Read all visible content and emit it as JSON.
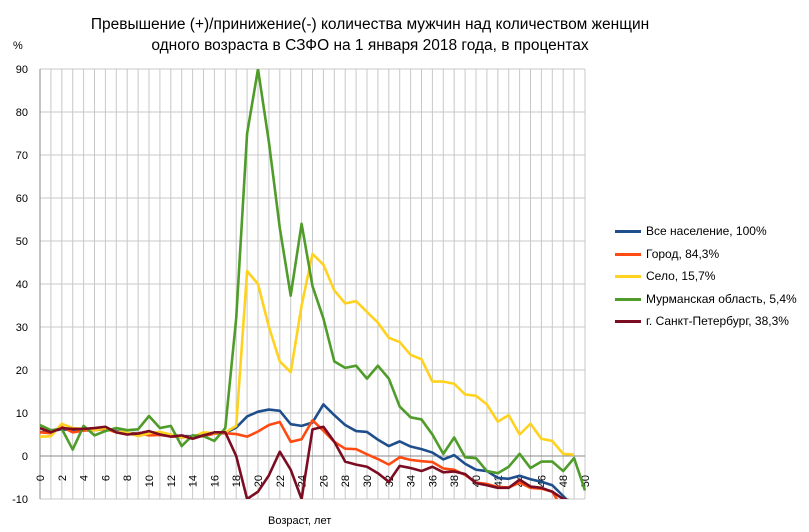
{
  "chart_data": {
    "type": "line",
    "title_line1": "Превышение (+)/принижение(-) количества мужчин над количеством женщин",
    "title_line2": "одного возраста в СЗФО на 1 января 2018 года, в процентах",
    "ylabel": "%",
    "xlabel": "Возраст, лет",
    "ylim": [
      -10,
      90
    ],
    "yticks": [
      -10,
      0,
      10,
      20,
      30,
      40,
      50,
      60,
      70,
      80,
      90
    ],
    "xlim": [
      0,
      50
    ],
    "xticks": [
      0,
      2,
      4,
      6,
      8,
      10,
      12,
      14,
      16,
      18,
      20,
      22,
      24,
      26,
      28,
      30,
      32,
      34,
      36,
      38,
      40,
      42,
      44,
      46,
      48,
      50
    ],
    "grid": true,
    "legend_position": "right",
    "series": [
      {
        "name": "Все население, 100%",
        "color": "#1f4e8c",
        "values": [
          5.5,
          5.8,
          6.2,
          6,
          6.2,
          6.3,
          6.3,
          5.8,
          5.3,
          5.3,
          5.5,
          5.2,
          4.9,
          4.6,
          4.6,
          4.9,
          5.2,
          5.4,
          6.6,
          9.2,
          10.3,
          10.8,
          10.5,
          7.4,
          7,
          7.8,
          12,
          9.5,
          7.2,
          5.8,
          5.6,
          3.8,
          2.3,
          3.4,
          2.2,
          1.6,
          0.8,
          -0.8,
          0.2,
          -1.8,
          -3.2,
          -3.5,
          -5.1,
          -5.3,
          -4.6,
          -5.4,
          -6,
          -6.8,
          -9.3,
          -12
        ]
      },
      {
        "name": "Город, 84,3%",
        "color": "#ff4a12",
        "values": [
          5.5,
          5.3,
          6.8,
          5.5,
          5.9,
          6,
          6.3,
          5.5,
          5,
          5.3,
          4.8,
          4.9,
          4.6,
          4.3,
          4.5,
          4.6,
          5.2,
          5.3,
          5.1,
          4.5,
          5.7,
          7.2,
          7.9,
          3.3,
          3.9,
          8.3,
          5.9,
          3.3,
          1.7,
          1.6,
          0.4,
          -0.7,
          -2,
          -0.3,
          -0.9,
          -1.2,
          -1.4,
          -2.9,
          -3.2,
          -4.4,
          -6.2,
          -6.5,
          -7.2,
          -7.3,
          -6.2,
          -7.4,
          -7.6,
          -8.3,
          -12.5,
          -13
        ]
      },
      {
        "name": "Село, 15,7%",
        "color": "#ffd21f",
        "values": [
          4.5,
          4.6,
          7.5,
          6.5,
          6.3,
          6,
          6.5,
          5.6,
          5.5,
          4.6,
          5.3,
          5.6,
          5,
          4.3,
          4.4,
          5.5,
          5.3,
          5.5,
          7,
          43,
          40,
          30,
          22,
          19.5,
          35,
          47,
          44.5,
          38.5,
          35.5,
          36,
          33.5,
          31,
          27.5,
          26.5,
          23.5,
          22.5,
          17.3,
          17.3,
          16.8,
          14.3,
          14,
          12,
          8,
          9.5,
          5,
          7.5,
          4,
          3.5,
          0.5,
          0.3
        ]
      },
      {
        "name": "Мурманская область, 5,4%",
        "color": "#4f9c2a",
        "values": [
          7.2,
          6,
          6.3,
          1.5,
          7,
          4.8,
          5.8,
          6.5,
          6,
          6.2,
          9.3,
          6.5,
          7,
          2.3,
          4.8,
          4.6,
          3.5,
          6.5,
          32,
          75,
          90,
          73,
          53,
          37.3,
          54,
          39.5,
          32,
          22,
          20.5,
          21,
          18,
          21,
          18,
          11.5,
          9,
          8.5,
          5,
          0.5,
          4.3,
          -0.3,
          -0.5,
          -3.5,
          -4,
          -2.5,
          0.5,
          -2.8,
          -1.3,
          -1.3,
          -3.5,
          -0.5,
          -8
        ]
      },
      {
        "name": "г. Санкт-Петербург, 38,3%",
        "color": "#7b0c22",
        "values": [
          6.5,
          5.5,
          6.5,
          6.3,
          6.3,
          6.5,
          6.8,
          5.5,
          5,
          5.2,
          5.8,
          5,
          4.5,
          4.8,
          4,
          4.8,
          5.5,
          5.5,
          0,
          -10,
          -8.3,
          -4.5,
          1,
          -3.2,
          -10,
          6.2,
          6.8,
          3.3,
          -1.3,
          -2,
          -2.5,
          -4,
          -6,
          -2.3,
          -2.8,
          -3.5,
          -2.5,
          -3.8,
          -3.6,
          -4.2,
          -6.3,
          -6.8,
          -7.4,
          -7.4,
          -5.5,
          -7.1,
          -7.4,
          -8.3,
          -10,
          -10.5
        ]
      }
    ]
  }
}
